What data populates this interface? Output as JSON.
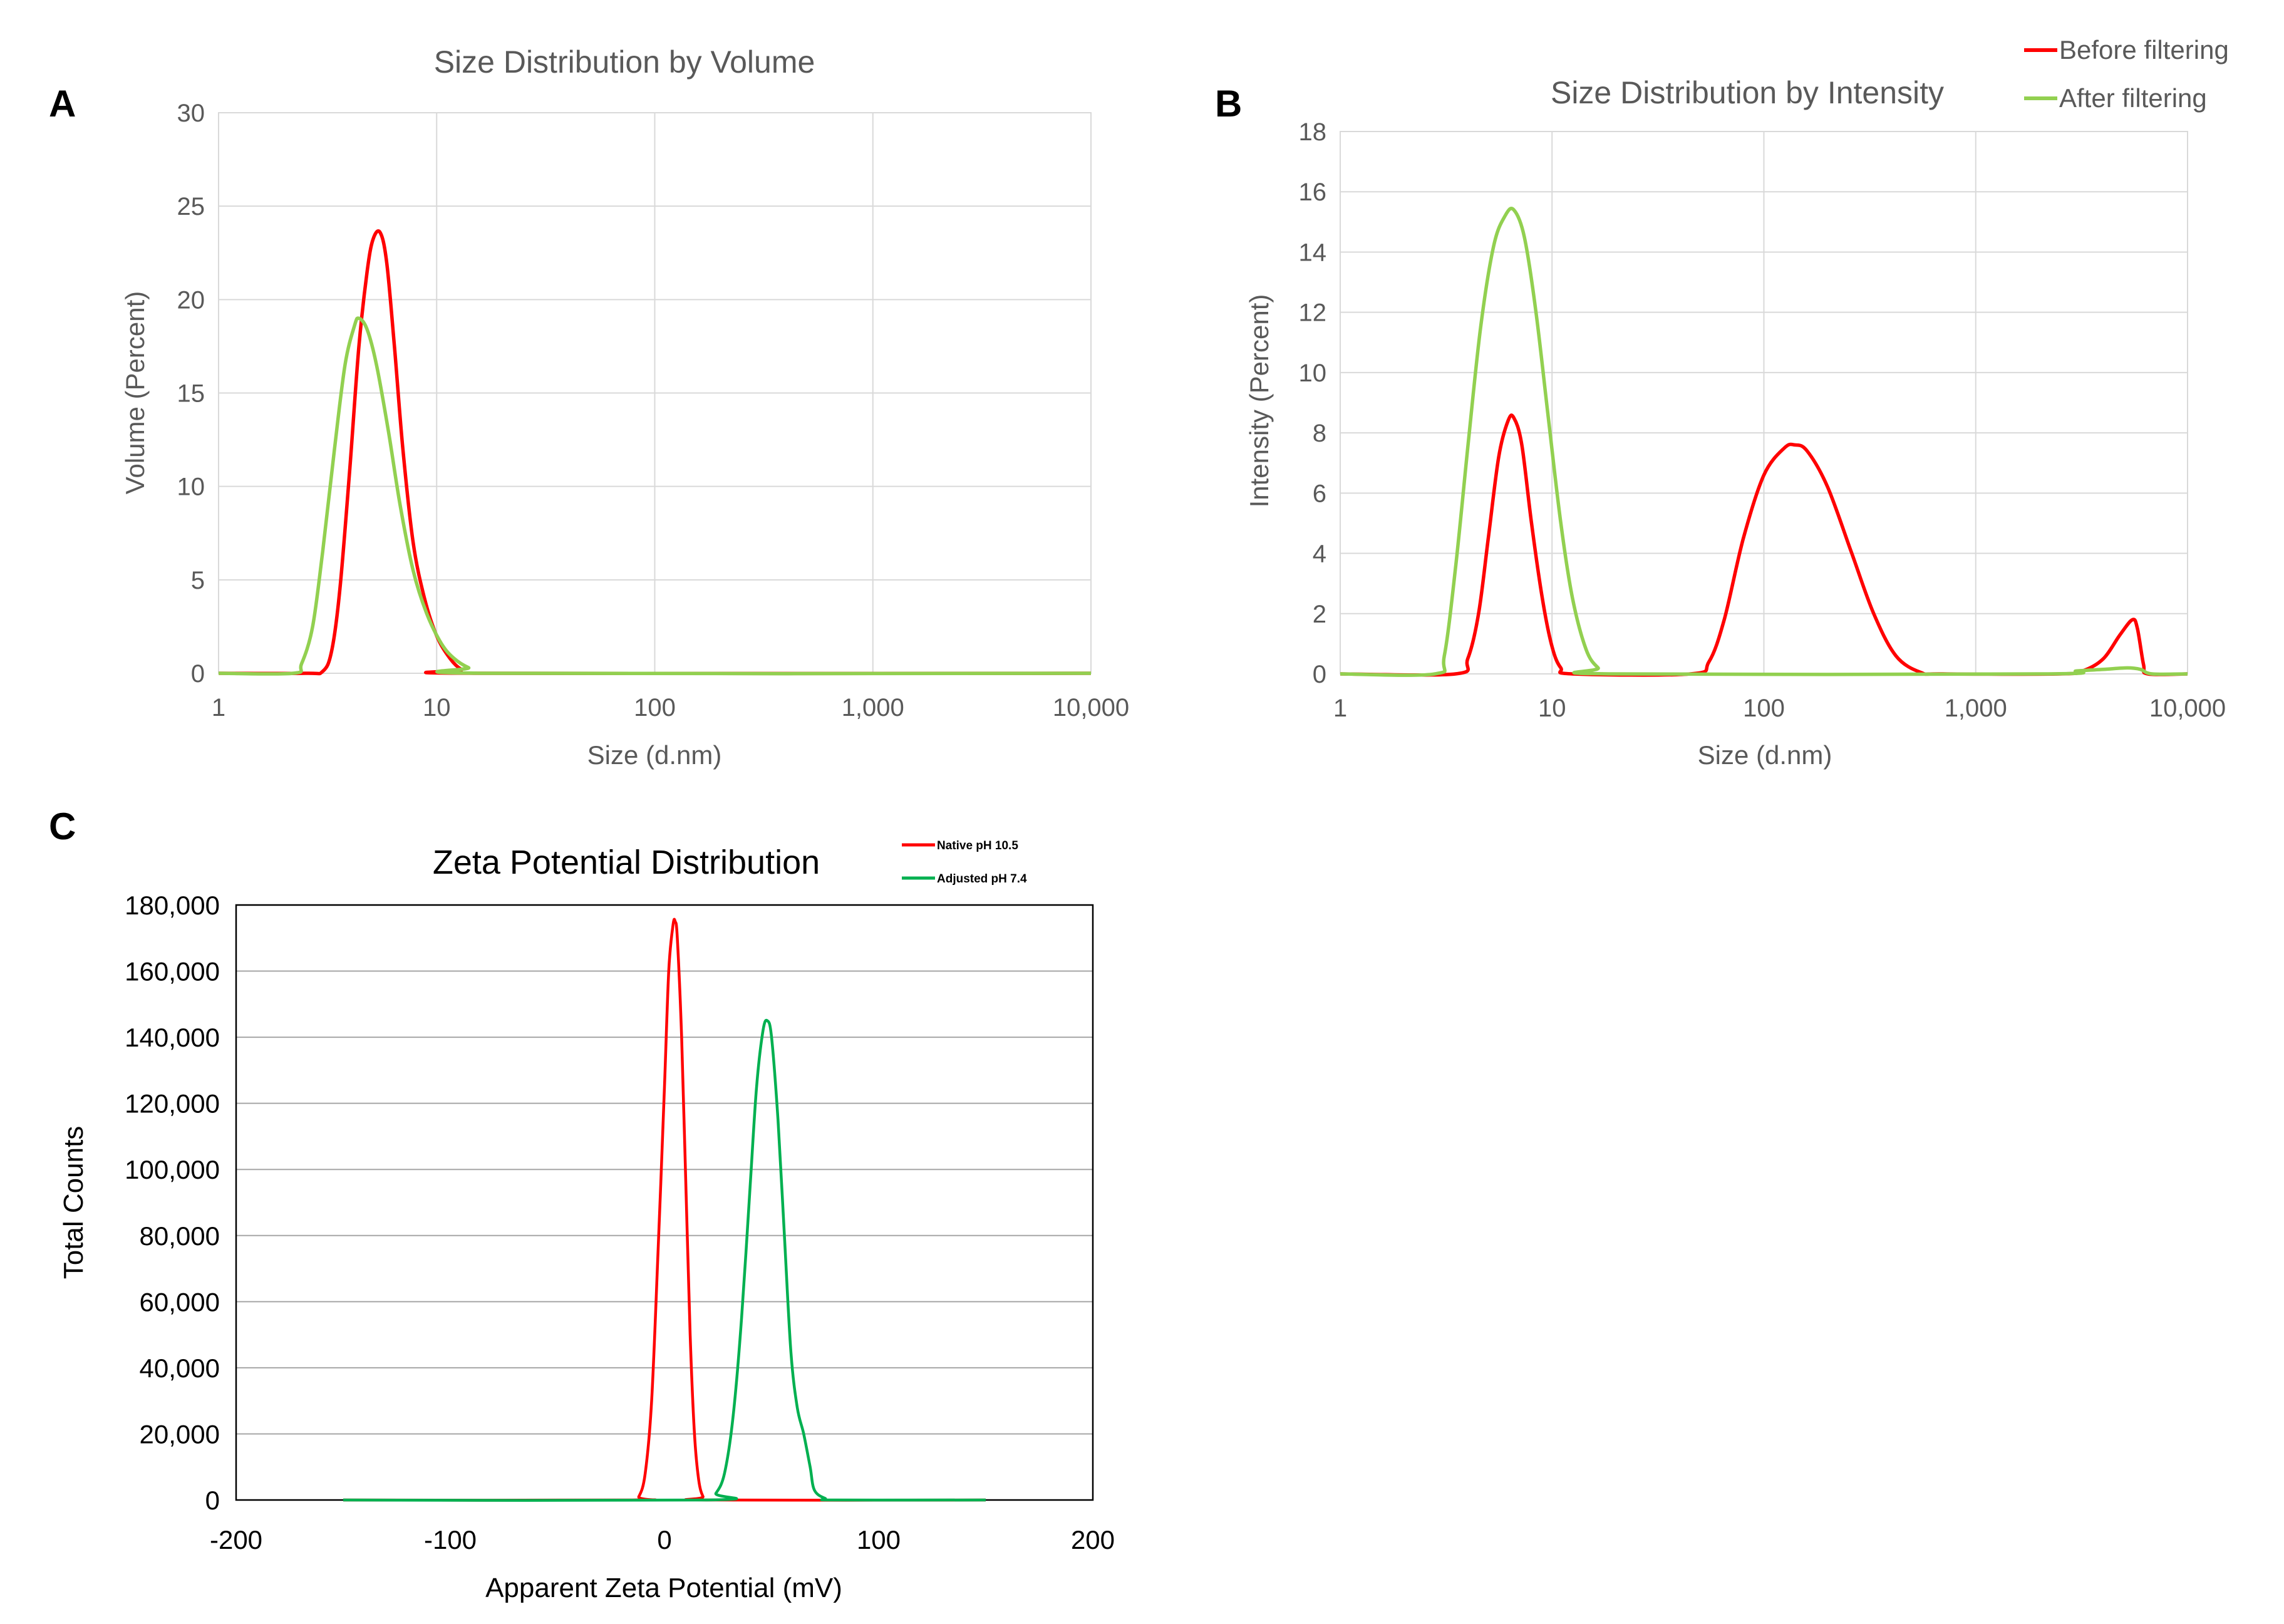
{
  "chart_data": [
    {
      "id": "A",
      "type": "line",
      "panel_letter": "A",
      "title": "Size Distribution by Volume",
      "xlabel": "Size (d.nm)",
      "ylabel": "Volume (Percent)",
      "x_scale": "log",
      "xlim": [
        1,
        10000
      ],
      "ylim": [
        0,
        30
      ],
      "x_ticks": [
        1,
        10,
        100,
        1000,
        10000
      ],
      "x_tick_labels": [
        "1",
        "10",
        "100",
        "1,000",
        "10,000"
      ],
      "y_ticks": [
        0,
        5,
        10,
        15,
        20,
        25,
        30
      ],
      "y_tick_labels": [
        "0",
        "5",
        "10",
        "15",
        "20",
        "25",
        "30"
      ],
      "grid": true,
      "series": [
        {
          "name": "Before filtering",
          "color": "#ff0000",
          "points": [
            [
              1,
              0
            ],
            [
              2.5,
              0
            ],
            [
              3.0,
              0.1
            ],
            [
              3.3,
              1.2
            ],
            [
              3.6,
              4.5
            ],
            [
              4.0,
              11
            ],
            [
              4.4,
              17.5
            ],
            [
              4.8,
              21.5
            ],
            [
              5.1,
              23.2
            ],
            [
              5.5,
              23.6
            ],
            [
              5.9,
              22.0
            ],
            [
              6.4,
              17.5
            ],
            [
              7.0,
              12.0
            ],
            [
              7.8,
              7.0
            ],
            [
              8.8,
              4.0
            ],
            [
              10.0,
              2.0
            ],
            [
              11.5,
              0.8
            ],
            [
              13.0,
              0.2
            ],
            [
              15.0,
              0
            ],
            [
              10000,
              0
            ]
          ]
        },
        {
          "name": "After filtering",
          "color": "#92d050",
          "points": [
            [
              1,
              0
            ],
            [
              2.2,
              0
            ],
            [
              2.4,
              0.5
            ],
            [
              2.7,
              2.5
            ],
            [
              3.0,
              6.5
            ],
            [
              3.4,
              12.0
            ],
            [
              3.8,
              16.5
            ],
            [
              4.2,
              18.6
            ],
            [
              4.4,
              19.0
            ],
            [
              4.8,
              18.4
            ],
            [
              5.3,
              16.5
            ],
            [
              6.0,
              13.0
            ],
            [
              6.8,
              9.0
            ],
            [
              7.8,
              5.5
            ],
            [
              9.0,
              3.2
            ],
            [
              10.5,
              1.6
            ],
            [
              12.0,
              0.8
            ],
            [
              14.0,
              0.3
            ],
            [
              17.0,
              0
            ],
            [
              10000,
              0
            ]
          ]
        }
      ]
    },
    {
      "id": "B",
      "type": "line",
      "panel_letter": "B",
      "title": "Size Distribution by Intensity",
      "xlabel": "Size (d.nm)",
      "ylabel": "Intensity (Percent)",
      "x_scale": "log",
      "xlim": [
        1,
        10000
      ],
      "ylim": [
        0,
        18
      ],
      "x_ticks": [
        1,
        10,
        100,
        1000,
        10000
      ],
      "x_tick_labels": [
        "1",
        "10",
        "100",
        "1,000",
        "10,000"
      ],
      "y_ticks": [
        0,
        2,
        4,
        6,
        8,
        10,
        12,
        14,
        16,
        18
      ],
      "y_tick_labels": [
        "0",
        "2",
        "4",
        "6",
        "8",
        "10",
        "12",
        "14",
        "16",
        "18"
      ],
      "grid": true,
      "legend": {
        "position": "top-right",
        "entries": [
          "Before filtering",
          "After filtering"
        ]
      },
      "series": [
        {
          "name": "Before filtering",
          "color": "#ff0000",
          "points": [
            [
              1,
              0
            ],
            [
              3.5,
              0
            ],
            [
              4.0,
              0.5
            ],
            [
              4.5,
              2.0
            ],
            [
              5.0,
              4.5
            ],
            [
              5.6,
              7.2
            ],
            [
              6.2,
              8.4
            ],
            [
              6.6,
              8.5
            ],
            [
              7.2,
              7.6
            ],
            [
              8.0,
              5.0
            ],
            [
              9.0,
              2.5
            ],
            [
              10.0,
              0.9
            ],
            [
              11.0,
              0.2
            ],
            [
              12.5,
              0
            ],
            [
              45,
              0
            ],
            [
              55,
              0.4
            ],
            [
              65,
              1.8
            ],
            [
              80,
              4.5
            ],
            [
              100,
              6.6
            ],
            [
              125,
              7.5
            ],
            [
              140,
              7.6
            ],
            [
              160,
              7.4
            ],
            [
              200,
              6.2
            ],
            [
              260,
              4.0
            ],
            [
              330,
              2.0
            ],
            [
              420,
              0.6
            ],
            [
              550,
              0.05
            ],
            [
              700,
              0
            ],
            [
              2500,
              0
            ],
            [
              3200,
              0.1
            ],
            [
              4000,
              0.5
            ],
            [
              4800,
              1.3
            ],
            [
              5500,
              1.8
            ],
            [
              5800,
              1.5
            ],
            [
              6200,
              0.3
            ],
            [
              6500,
              0
            ],
            [
              10000,
              0
            ]
          ]
        },
        {
          "name": "After filtering",
          "color": "#92d050",
          "points": [
            [
              1,
              0
            ],
            [
              2.8,
              0
            ],
            [
              3.1,
              0.6
            ],
            [
              3.5,
              3.5
            ],
            [
              4.0,
              7.5
            ],
            [
              4.6,
              11.5
            ],
            [
              5.3,
              14.2
            ],
            [
              6.0,
              15.2
            ],
            [
              6.6,
              15.4
            ],
            [
              7.4,
              14.5
            ],
            [
              8.4,
              12.0
            ],
            [
              9.6,
              8.5
            ],
            [
              11.0,
              5.0
            ],
            [
              12.5,
              2.5
            ],
            [
              14.5,
              0.8
            ],
            [
              16.5,
              0.2
            ],
            [
              18.5,
              0
            ],
            [
              2000,
              0
            ],
            [
              3000,
              0.1
            ],
            [
              4000,
              0.15
            ],
            [
              5200,
              0.2
            ],
            [
              6000,
              0.15
            ],
            [
              6800,
              0
            ],
            [
              10000,
              0
            ]
          ]
        }
      ]
    },
    {
      "id": "C",
      "type": "line",
      "panel_letter": "C",
      "title": "Zeta Potential Distribution",
      "xlabel": "Apparent Zeta Potential (mV)",
      "ylabel": "Total Counts",
      "x_scale": "linear",
      "xlim": [
        -200,
        200
      ],
      "ylim": [
        0,
        180000
      ],
      "x_ticks": [
        -200,
        -100,
        0,
        100,
        200
      ],
      "x_tick_labels": [
        "-200",
        "-100",
        "0",
        "100",
        "200"
      ],
      "y_ticks": [
        0,
        20000,
        40000,
        60000,
        80000,
        100000,
        120000,
        140000,
        160000,
        180000
      ],
      "y_tick_labels": [
        "0",
        "20,000",
        "40,000",
        "60,000",
        "80,000",
        "100,000",
        "120,000",
        "140,000",
        "160,000",
        "180,000"
      ],
      "grid": "horizontal",
      "legend": {
        "position": "top-right",
        "entries": [
          "Native pH 10.5",
          "Adjusted pH 7.4"
        ]
      },
      "series": [
        {
          "name": "Native pH 10.5",
          "color": "#ff0000",
          "points": [
            [
              -150,
              0
            ],
            [
              -15,
              0
            ],
            [
              -12,
              1000
            ],
            [
              -9,
              8000
            ],
            [
              -6,
              30000
            ],
            [
              -3,
              75000
            ],
            [
              0,
              125000
            ],
            [
              2,
              160000
            ],
            [
              4,
              174000
            ],
            [
              5,
              175000
            ],
            [
              6,
              170000
            ],
            [
              8,
              140000
            ],
            [
              10,
              95000
            ],
            [
              12,
              50000
            ],
            [
              14,
              20000
            ],
            [
              16,
              6000
            ],
            [
              18,
              1000
            ],
            [
              20,
              0
            ],
            [
              150,
              0
            ]
          ]
        },
        {
          "name": "Adjusted pH 7.4",
          "color": "#00b050",
          "points": [
            [
              -150,
              0
            ],
            [
              20,
              0
            ],
            [
              24,
              2000
            ],
            [
              28,
              8000
            ],
            [
              32,
              25000
            ],
            [
              36,
              55000
            ],
            [
              40,
              95000
            ],
            [
              43,
              125000
            ],
            [
              46,
              142000
            ],
            [
              48,
              145000
            ],
            [
              50,
              140000
            ],
            [
              53,
              115000
            ],
            [
              56,
              80000
            ],
            [
              59,
              45000
            ],
            [
              62,
              28000
            ],
            [
              65,
              20000
            ],
            [
              68,
              10000
            ],
            [
              70,
              3000
            ],
            [
              75,
              500
            ],
            [
              80,
              0
            ],
            [
              150,
              0
            ]
          ]
        }
      ]
    }
  ]
}
